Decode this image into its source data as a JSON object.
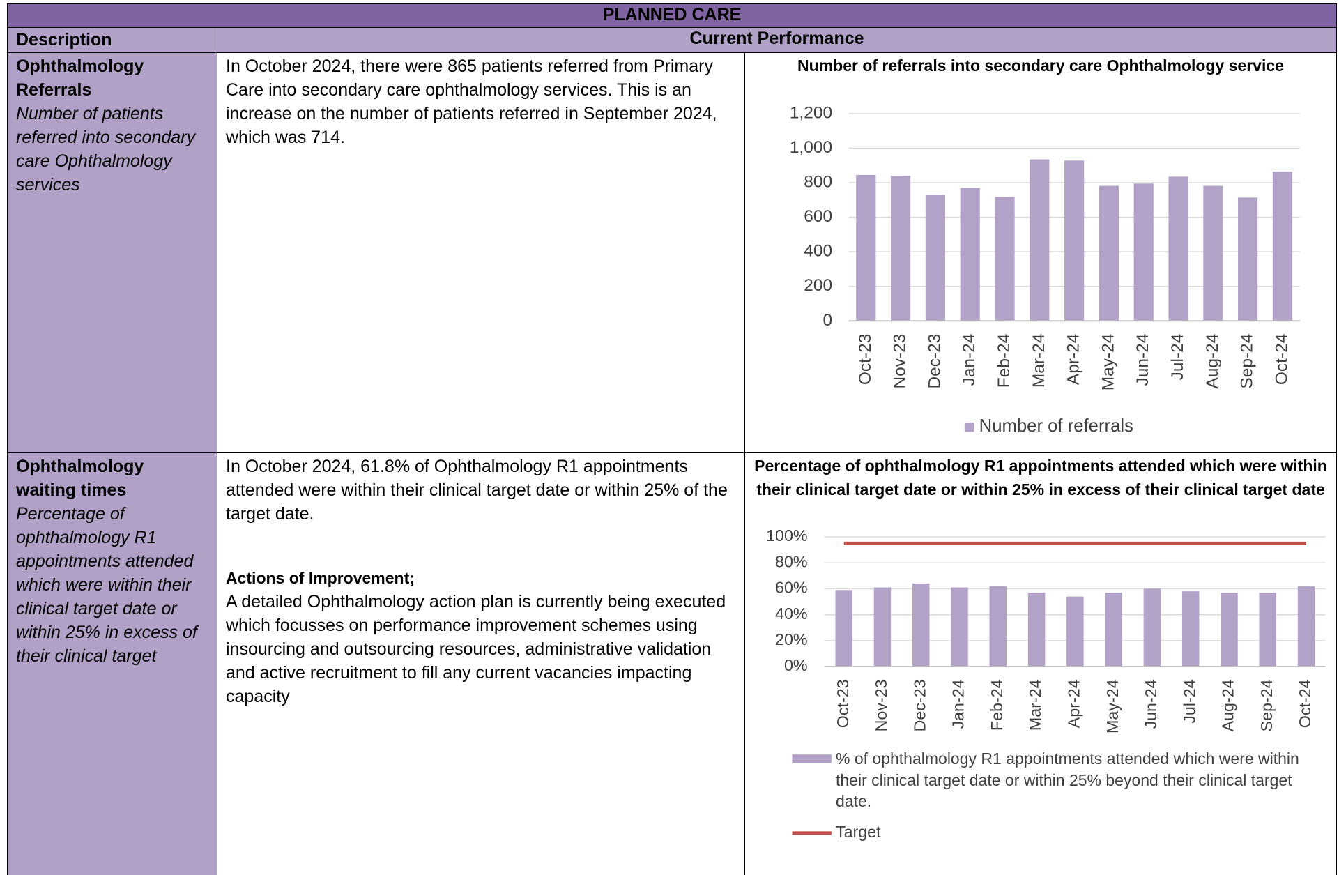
{
  "title": "PLANNED CARE",
  "table": {
    "headers": [
      "Description",
      "Current Performance"
    ],
    "rows": [
      {
        "name": "Ophthalmology Referrals",
        "description": "Number of patients referred into secondary care Ophthalmology services",
        "performance": "In October 2024, there were 865 patients referred from Primary Care into secondary care ophthalmology services. This is an increase on the number of patients referred in September 2024, which was 714."
      },
      {
        "name": "Ophthalmology waiting times",
        "description": "Percentage of ophthalmology R1 appointments attended which were within their clinical target date or within 25% in excess of their clinical target",
        "performance": "In October 2024, 61.8% of Ophthalmology R1 appointments attended were within their clinical target date or within 25% of the target date.",
        "actions_heading": "Actions of Improvement;",
        "actions": "A detailed Ophthalmology action plan is currently being executed which focusses on performance improvement schemes using insourcing and outsourcing resources, administrative validation and active recruitment to fill any current vacancies impacting capacity"
      }
    ]
  },
  "chart_data": [
    {
      "type": "bar",
      "title": "Number of referrals into secondary care Ophthalmology service",
      "categories": [
        "Oct-23",
        "Nov-23",
        "Dec-23",
        "Jan-24",
        "Feb-24",
        "Mar-24",
        "Apr-24",
        "May-24",
        "Jun-24",
        "Jul-24",
        "Aug-24",
        "Sep-24",
        "Oct-24"
      ],
      "series": [
        {
          "name": "Number of referrals",
          "color": "#b3a2c7",
          "type": "bar",
          "values": [
            845,
            840,
            730,
            770,
            718,
            935,
            928,
            782,
            795,
            835,
            782,
            714,
            865
          ]
        }
      ],
      "ylim": [
        0,
        1200
      ],
      "yticks": [
        0,
        200,
        400,
        600,
        800,
        {
          "value": 1000,
          "label": "1,000"
        },
        {
          "value": 1200,
          "label": "1,200"
        }
      ],
      "grid": true,
      "legend": "bottom"
    },
    {
      "type": "bar",
      "title": "Percentage of ophthalmology R1 appointments attended which were within their clinical target date or within 25% in excess of their clinical target date",
      "categories": [
        "Oct-23",
        "Nov-23",
        "Dec-23",
        "Jan-24",
        "Feb-24",
        "Mar-24",
        "Apr-24",
        "May-24",
        "Jun-24",
        "Jul-24",
        "Aug-24",
        "Sep-24",
        "Oct-24"
      ],
      "series": [
        {
          "name": "% of ophthalmology R1 appointments attended which were within their clinical target date or within 25% beyond their clinical target date.",
          "color": "#b3a2c7",
          "type": "bar",
          "values": [
            59,
            61,
            64,
            61,
            62,
            57,
            54,
            57,
            60,
            58,
            57,
            57,
            61.8
          ]
        },
        {
          "name": "Target",
          "color": "#c0504d",
          "type": "line",
          "values": [
            95,
            95,
            95,
            95,
            95,
            95,
            95,
            95,
            95,
            95,
            95,
            95,
            95
          ]
        }
      ],
      "ylim": [
        0,
        100
      ],
      "yticks": [
        {
          "value": 0,
          "label": "0%"
        },
        {
          "value": 20,
          "label": "20%"
        },
        {
          "value": 40,
          "label": "40%"
        },
        {
          "value": 60,
          "label": "60%"
        },
        {
          "value": 80,
          "label": "80%"
        },
        {
          "value": 100,
          "label": "100%"
        }
      ],
      "grid": true,
      "legend": "bottom"
    }
  ]
}
